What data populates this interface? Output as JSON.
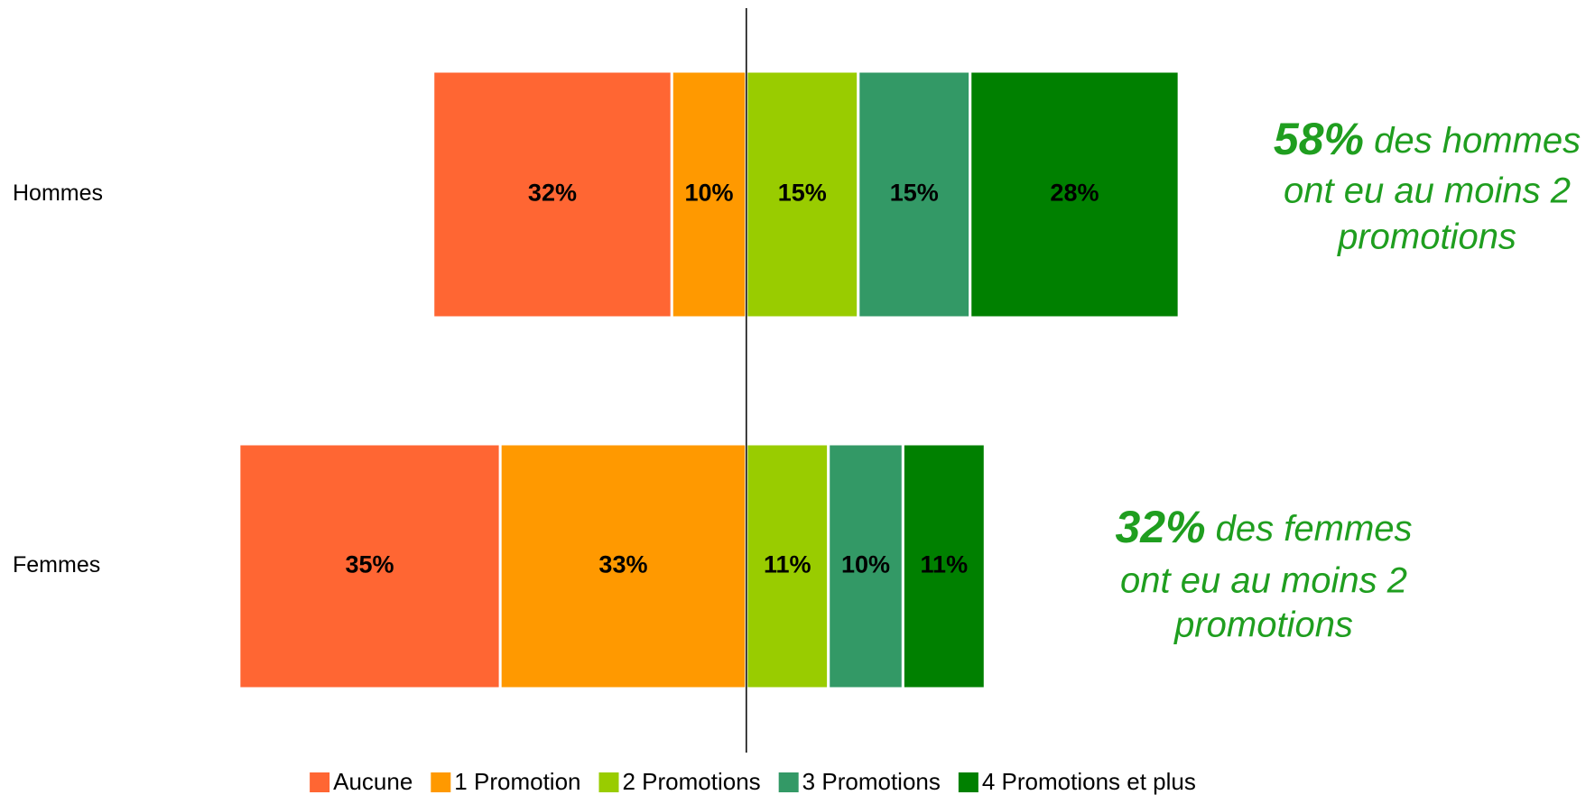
{
  "chart_data": {
    "type": "diverging_bar",
    "categories": [
      "Hommes",
      "Femmes"
    ],
    "series": [
      {
        "name": "Aucune",
        "color": "#ff6633",
        "side": "left",
        "values": [
          32,
          35
        ],
        "value_labels": [
          "32%",
          "35%"
        ]
      },
      {
        "name": "1 Promotion",
        "color": "#ff9900",
        "side": "left",
        "values": [
          10,
          33
        ],
        "value_labels": [
          "10%",
          "33%"
        ]
      },
      {
        "name": "2 Promotions",
        "color": "#99cc00",
        "side": "right",
        "values": [
          15,
          11
        ],
        "value_labels": [
          "15%",
          "11%"
        ]
      },
      {
        "name": "3 Promotions",
        "color": "#339966",
        "side": "right",
        "values": [
          15,
          10
        ],
        "value_labels": [
          "15%",
          "10%"
        ]
      },
      {
        "name": "4 Promotions et plus",
        "color": "#008000",
        "side": "right",
        "values": [
          28,
          11
        ],
        "value_labels": [
          "28%",
          "11%"
        ]
      }
    ],
    "xlim": [
      -75,
      65
    ],
    "legend": "bottom",
    "annotations": [
      {
        "highlight": "58%",
        "lines": [
          "des hommes",
          "ont eu au moins 2",
          "promotions"
        ]
      },
      {
        "highlight": "32%",
        "lines": [
          "des femmes",
          "ont eu au moins 2",
          "promotions"
        ]
      }
    ]
  }
}
